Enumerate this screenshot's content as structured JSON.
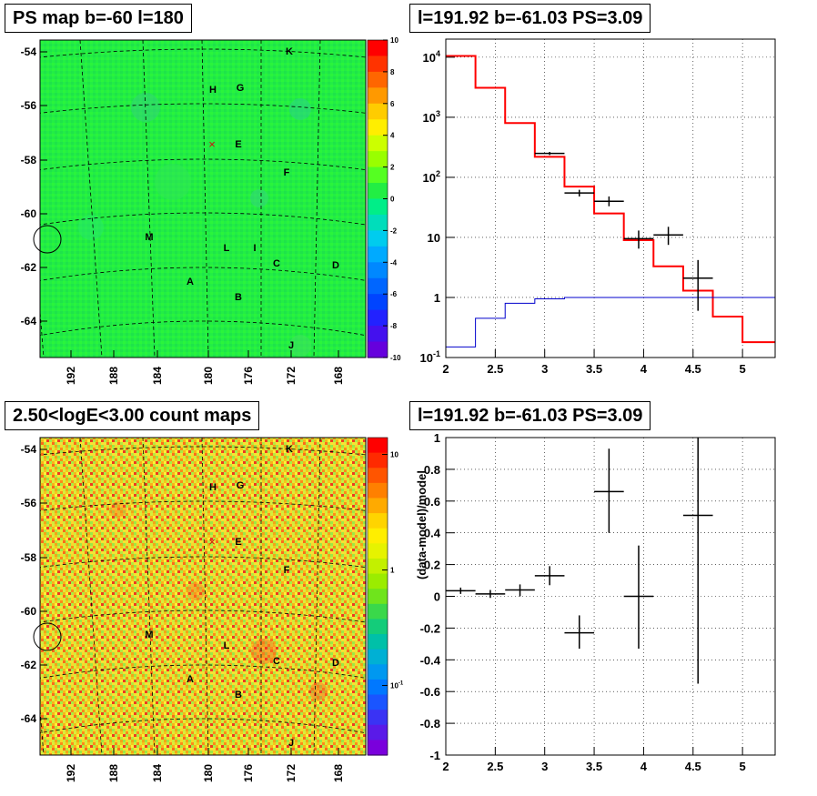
{
  "panels": {
    "map_title": "PS map b=-60 l=180",
    "spectrum_title": "l=191.92 b=-61.03 PS=3.09",
    "count_title": "2.50<logE<3.00 count maps",
    "residual_title": "l=191.92 b=-61.03 PS=3.09"
  },
  "colors": {
    "map_green": "#22ee44",
    "model_red": "#ff0000",
    "background_blue": "#0000cc",
    "data_black": "#000000"
  },
  "chart_data": [
    {
      "type": "heatmap",
      "title": "PS map b=-60 l=180",
      "x_ticks": [
        "192",
        "188",
        "184",
        "180",
        "176",
        "172",
        "168"
      ],
      "y_ticks": [
        "-54",
        "-56",
        "-58",
        "-60",
        "-62",
        "-64"
      ],
      "colorbar_ticks": [
        "10",
        "8",
        "6",
        "4",
        "2",
        "0",
        "-2",
        "-4",
        "-6",
        "-8",
        "-10"
      ],
      "colorbar_range": [
        -10,
        10
      ],
      "source_labels": [
        "K",
        "H",
        "G",
        "E",
        "F",
        "M",
        "L",
        "I",
        "C",
        "D",
        "A",
        "B",
        "J"
      ],
      "source_marker": "×"
    },
    {
      "type": "line",
      "title": "l=191.92 b=-61.03 PS=3.09",
      "xlim": [
        2,
        5.33
      ],
      "ylim": [
        0.1,
        20000
      ],
      "y_scale": "log",
      "grid": true,
      "x_ticks": [
        "2",
        "2.5",
        "3",
        "3.5",
        "4",
        "4.5",
        "5"
      ],
      "y_ticks": [
        {
          "base": "10",
          "exp": "-1",
          "v": 0.1
        },
        {
          "base": "1",
          "exp": "",
          "v": 1
        },
        {
          "base": "10",
          "exp": "",
          "v": 10
        },
        {
          "base": "10",
          "exp": "2",
          "v": 100
        },
        {
          "base": "10",
          "exp": "3",
          "v": 1000
        },
        {
          "base": "10",
          "exp": "4",
          "v": 10000
        }
      ],
      "series": [
        {
          "color": "#ff0000",
          "style": "step",
          "edges": [
            2,
            2.3,
            2.6,
            2.9,
            3.2,
            3.5,
            3.8,
            4.1,
            4.4,
            4.7,
            5.0,
            5.33
          ],
          "values": [
            10500,
            3100,
            800,
            220,
            70,
            25,
            9,
            3.3,
            1.3,
            0.48,
            0.18
          ]
        },
        {
          "color": "#0000cc",
          "style": "step",
          "edges": [
            2,
            2.3,
            2.6,
            2.9,
            3.2,
            3.5,
            3.8,
            4.1,
            4.4,
            4.7,
            5.0,
            5.33
          ],
          "values": [
            0.15,
            0.45,
            0.8,
            0.95,
            1,
            1,
            1,
            1,
            1,
            1,
            1
          ]
        },
        {
          "color": "#000000",
          "style": "errorbar",
          "points": [
            {
              "x": 3.05,
              "xerr": 0.15,
              "y": 250,
              "ylo": 235,
              "yhi": 265
            },
            {
              "x": 3.35,
              "xerr": 0.15,
              "y": 55,
              "ylo": 48,
              "yhi": 62
            },
            {
              "x": 3.65,
              "xerr": 0.15,
              "y": 40,
              "ylo": 33,
              "yhi": 48
            },
            {
              "x": 3.95,
              "xerr": 0.15,
              "y": 9.5,
              "ylo": 6.5,
              "yhi": 13
            },
            {
              "x": 4.25,
              "xerr": 0.15,
              "y": 11,
              "ylo": 7.5,
              "yhi": 15
            },
            {
              "x": 4.55,
              "xerr": 0.15,
              "y": 2.1,
              "ylo": 0.6,
              "yhi": 4.2
            }
          ]
        }
      ]
    },
    {
      "type": "heatmap",
      "title": "2.50<logE<3.00 count maps",
      "x_ticks": [
        "192",
        "188",
        "184",
        "180",
        "176",
        "172",
        "168"
      ],
      "y_ticks": [
        "-54",
        "-56",
        "-58",
        "-60",
        "-62",
        "-64"
      ],
      "colorbar_scale": "log",
      "colorbar_ticks": [
        {
          "base": "10",
          "exp": "",
          "v": 10
        },
        {
          "base": "1",
          "exp": "",
          "v": 1
        },
        {
          "base": "10",
          "exp": "-1",
          "v": 0.1
        }
      ],
      "colorbar_range": [
        0.025,
        14
      ],
      "source_labels": [
        "K",
        "H",
        "G",
        "E",
        "F",
        "M",
        "L",
        "C",
        "D",
        "A",
        "B",
        "J"
      ],
      "source_marker": "×"
    },
    {
      "type": "scatter",
      "title": "l=191.92 b=-61.03 PS=3.09",
      "ylabel": "(data-model)/model",
      "xlim": [
        2,
        5.33
      ],
      "ylim": [
        -1,
        1
      ],
      "grid": true,
      "x_ticks": [
        "2",
        "2.5",
        "3",
        "3.5",
        "4",
        "4.5",
        "5"
      ],
      "y_ticks": [
        "1",
        "0.8",
        "0.6",
        "0.4",
        "0.2",
        "0",
        "-0.2",
        "-0.4",
        "-0.6",
        "-0.8",
        "-1"
      ],
      "points": [
        {
          "x": 2.15,
          "xerr": 0.15,
          "y": 0.035,
          "ylo": 0.015,
          "yhi": 0.055
        },
        {
          "x": 2.45,
          "xerr": 0.15,
          "y": 0.015,
          "ylo": -0.01,
          "yhi": 0.04
        },
        {
          "x": 2.75,
          "xerr": 0.15,
          "y": 0.04,
          "ylo": 0.0,
          "yhi": 0.075
        },
        {
          "x": 3.05,
          "xerr": 0.15,
          "y": 0.13,
          "ylo": 0.07,
          "yhi": 0.19
        },
        {
          "x": 3.35,
          "xerr": 0.15,
          "y": -0.23,
          "ylo": -0.33,
          "yhi": -0.12
        },
        {
          "x": 3.65,
          "xerr": 0.15,
          "y": 0.66,
          "ylo": 0.4,
          "yhi": 0.93
        },
        {
          "x": 3.95,
          "xerr": 0.15,
          "y": 0.0,
          "ylo": -0.33,
          "yhi": 0.32
        },
        {
          "x": 4.55,
          "xerr": 0.15,
          "y": 0.51,
          "ylo": -0.55,
          "yhi": 1.0
        }
      ]
    }
  ]
}
